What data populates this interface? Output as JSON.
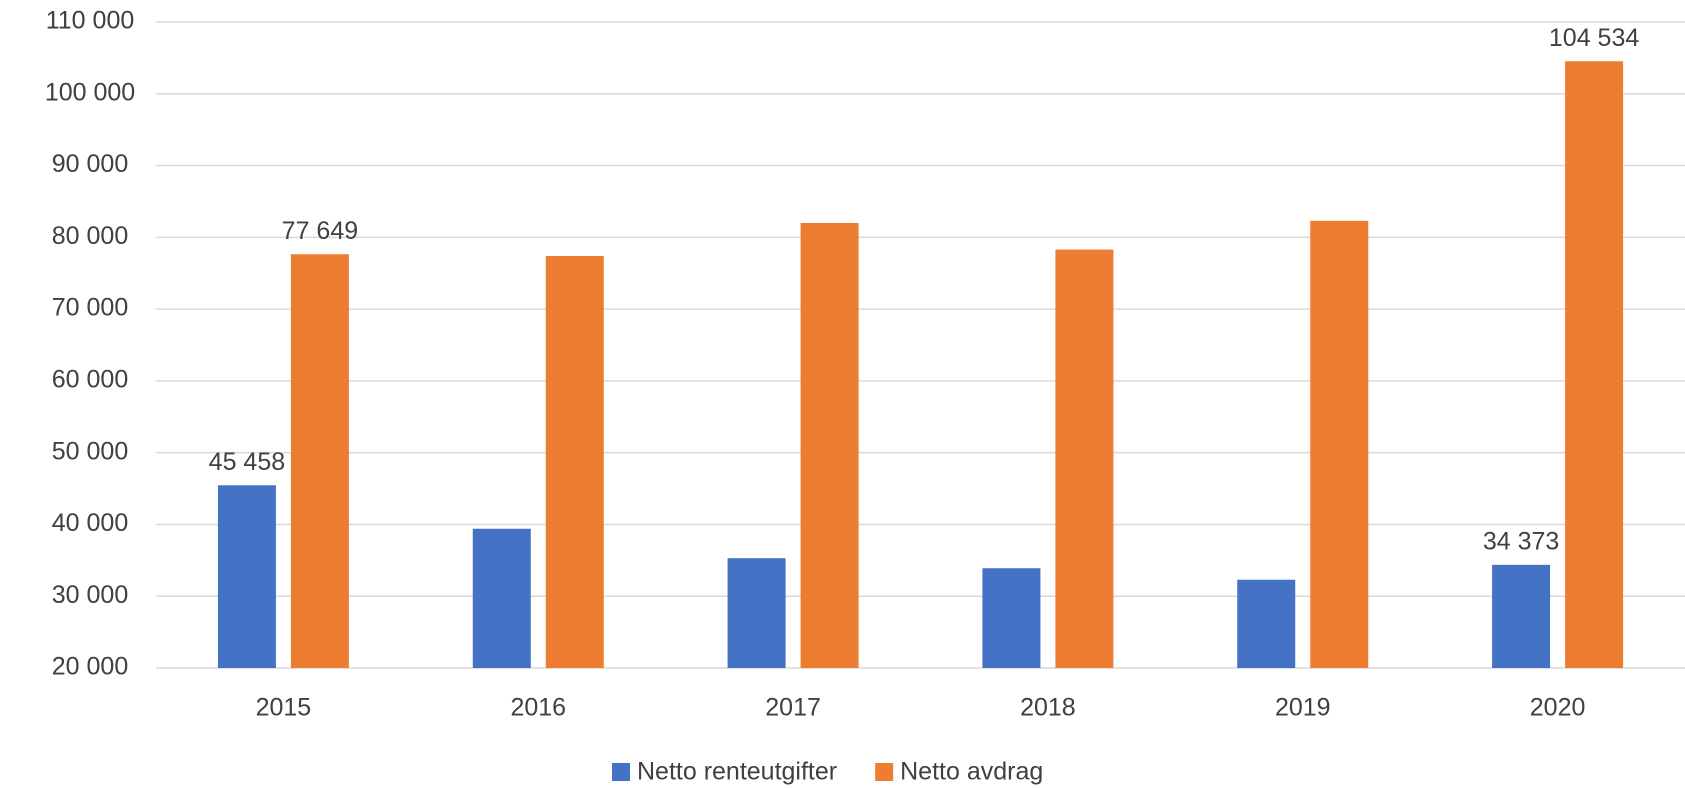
{
  "chart_data": {
    "type": "bar",
    "categories": [
      "2015",
      "2016",
      "2017",
      "2018",
      "2019",
      "2020"
    ],
    "series": [
      {
        "name": "Netto renteutgifter",
        "color": "#4472c4",
        "values": [
          45458,
          39400,
          35300,
          33900,
          32300,
          34373
        ],
        "value_labels": [
          "45 458",
          null,
          null,
          null,
          null,
          "34 373"
        ]
      },
      {
        "name": "Netto avdrag",
        "color": "#ed7d31",
        "values": [
          77649,
          77400,
          82000,
          78300,
          82300,
          104534
        ],
        "value_labels": [
          "77 649",
          null,
          null,
          null,
          null,
          "104 534"
        ]
      }
    ],
    "ylim": [
      20000,
      110000
    ],
    "yticks": [
      {
        "value": 20000,
        "label": "20 000"
      },
      {
        "value": 30000,
        "label": "30 000"
      },
      {
        "value": 40000,
        "label": "40 000"
      },
      {
        "value": 50000,
        "label": "50 000"
      },
      {
        "value": 60000,
        "label": "60 000"
      },
      {
        "value": 70000,
        "label": "70 000"
      },
      {
        "value": 80000,
        "label": "80 000"
      },
      {
        "value": 90000,
        "label": "90 000"
      },
      {
        "value": 100000,
        "label": "100 000"
      },
      {
        "value": 110000,
        "label": "110 000"
      }
    ],
    "grid": true,
    "legend": "bottom"
  }
}
